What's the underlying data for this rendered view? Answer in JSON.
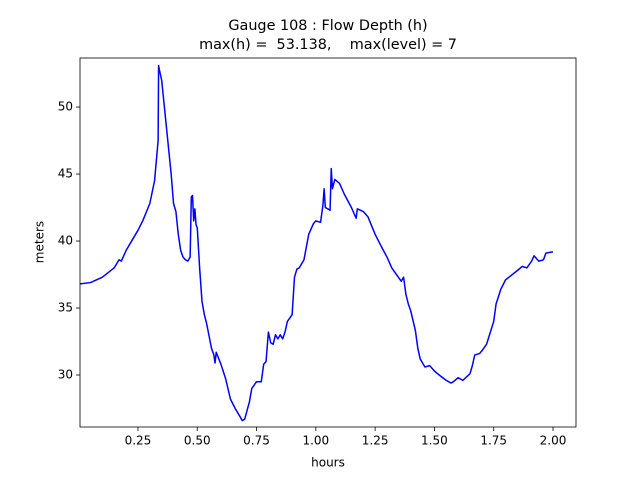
{
  "chart_data": {
    "type": "line",
    "title": "Gauge 108 : Flow Depth (h)",
    "subtitle": "max(h) =  53.138,    max(level) = 7",
    "xlabel": "hours",
    "ylabel": "meters",
    "x": [
      0.0056,
      0.05,
      0.1,
      0.15,
      0.17,
      0.18,
      0.2,
      0.25,
      0.27,
      0.3,
      0.32,
      0.33,
      0.335,
      0.337,
      0.34,
      0.35,
      0.37,
      0.39,
      0.4,
      0.41,
      0.42,
      0.43,
      0.44,
      0.45,
      0.46,
      0.47,
      0.475,
      0.48,
      0.485,
      0.49,
      0.495,
      0.5,
      0.51,
      0.52,
      0.53,
      0.54,
      0.56,
      0.57,
      0.575,
      0.58,
      0.6,
      0.62,
      0.64,
      0.66,
      0.68,
      0.69,
      0.7,
      0.72,
      0.73,
      0.75,
      0.77,
      0.78,
      0.79,
      0.8,
      0.81,
      0.82,
      0.83,
      0.84,
      0.85,
      0.86,
      0.87,
      0.88,
      0.9,
      0.91,
      0.92,
      0.93,
      0.95,
      0.97,
      0.99,
      1.0,
      1.02,
      1.03,
      1.035,
      1.04,
      1.06,
      1.065,
      1.07,
      1.08,
      1.1,
      1.12,
      1.15,
      1.17,
      1.175,
      1.2,
      1.22,
      1.25,
      1.27,
      1.3,
      1.32,
      1.34,
      1.36,
      1.37,
      1.38,
      1.39,
      1.4,
      1.42,
      1.43,
      1.44,
      1.46,
      1.48,
      1.5,
      1.52,
      1.55,
      1.57,
      1.58,
      1.6,
      1.62,
      1.65,
      1.66,
      1.67,
      1.69,
      1.7,
      1.72,
      1.75,
      1.76,
      1.78,
      1.8,
      1.85,
      1.87,
      1.89,
      1.91,
      1.92,
      1.94,
      1.96,
      1.97,
      2.0
    ],
    "series": [
      {
        "name": "h",
        "color": "#0000ff",
        "values": [
          36.8,
          36.9,
          37.3,
          38.0,
          38.6,
          38.5,
          39.3,
          40.8,
          41.5,
          42.8,
          44.5,
          46.5,
          47.5,
          53.1,
          52.8,
          52.0,
          48.5,
          45.0,
          42.8,
          42.2,
          40.5,
          39.3,
          38.8,
          38.6,
          38.5,
          38.8,
          43.3,
          43.4,
          41.5,
          42.4,
          41.2,
          41.0,
          38.0,
          35.5,
          34.5,
          33.8,
          32.0,
          31.5,
          30.9,
          31.7,
          30.8,
          29.7,
          28.2,
          27.5,
          26.9,
          26.6,
          26.7,
          28.0,
          29.0,
          29.5,
          29.5,
          30.8,
          31.0,
          33.2,
          32.4,
          32.3,
          33.0,
          32.7,
          33.0,
          32.7,
          33.2,
          34.0,
          34.5,
          37.3,
          37.9,
          38.0,
          38.6,
          40.5,
          41.3,
          41.5,
          41.4,
          42.7,
          43.9,
          42.5,
          42.3,
          45.4,
          43.9,
          44.6,
          44.3,
          43.5,
          42.5,
          41.7,
          42.4,
          42.2,
          41.8,
          40.5,
          39.8,
          38.8,
          38.0,
          37.5,
          37.0,
          37.3,
          36.0,
          35.3,
          34.8,
          33.3,
          32.0,
          31.2,
          30.6,
          30.7,
          30.3,
          30.0,
          29.6,
          29.4,
          29.5,
          29.8,
          29.6,
          30.1,
          30.7,
          31.5,
          31.6,
          31.8,
          32.3,
          34.0,
          35.3,
          36.4,
          37.1,
          37.8,
          38.1,
          38.0,
          38.5,
          38.9,
          38.5,
          38.6,
          39.1,
          39.2
        ]
      }
    ],
    "xlim": [
      0.0056,
      2.097
    ],
    "xticks": [
      0.25,
      {
        "value": 0.5,
        "label": "0.50"
      },
      0.75,
      {
        "value": 1,
        "label": "1.00"
      },
      1.25,
      {
        "value": 1.5,
        "label": "1.50"
      },
      1.75,
      {
        "value": 2,
        "label": "2.00"
      }
    ],
    "ylim": [
      26.12,
      53.66
    ],
    "yticks": [
      30,
      35,
      40,
      45,
      50
    ],
    "grid": false
  }
}
